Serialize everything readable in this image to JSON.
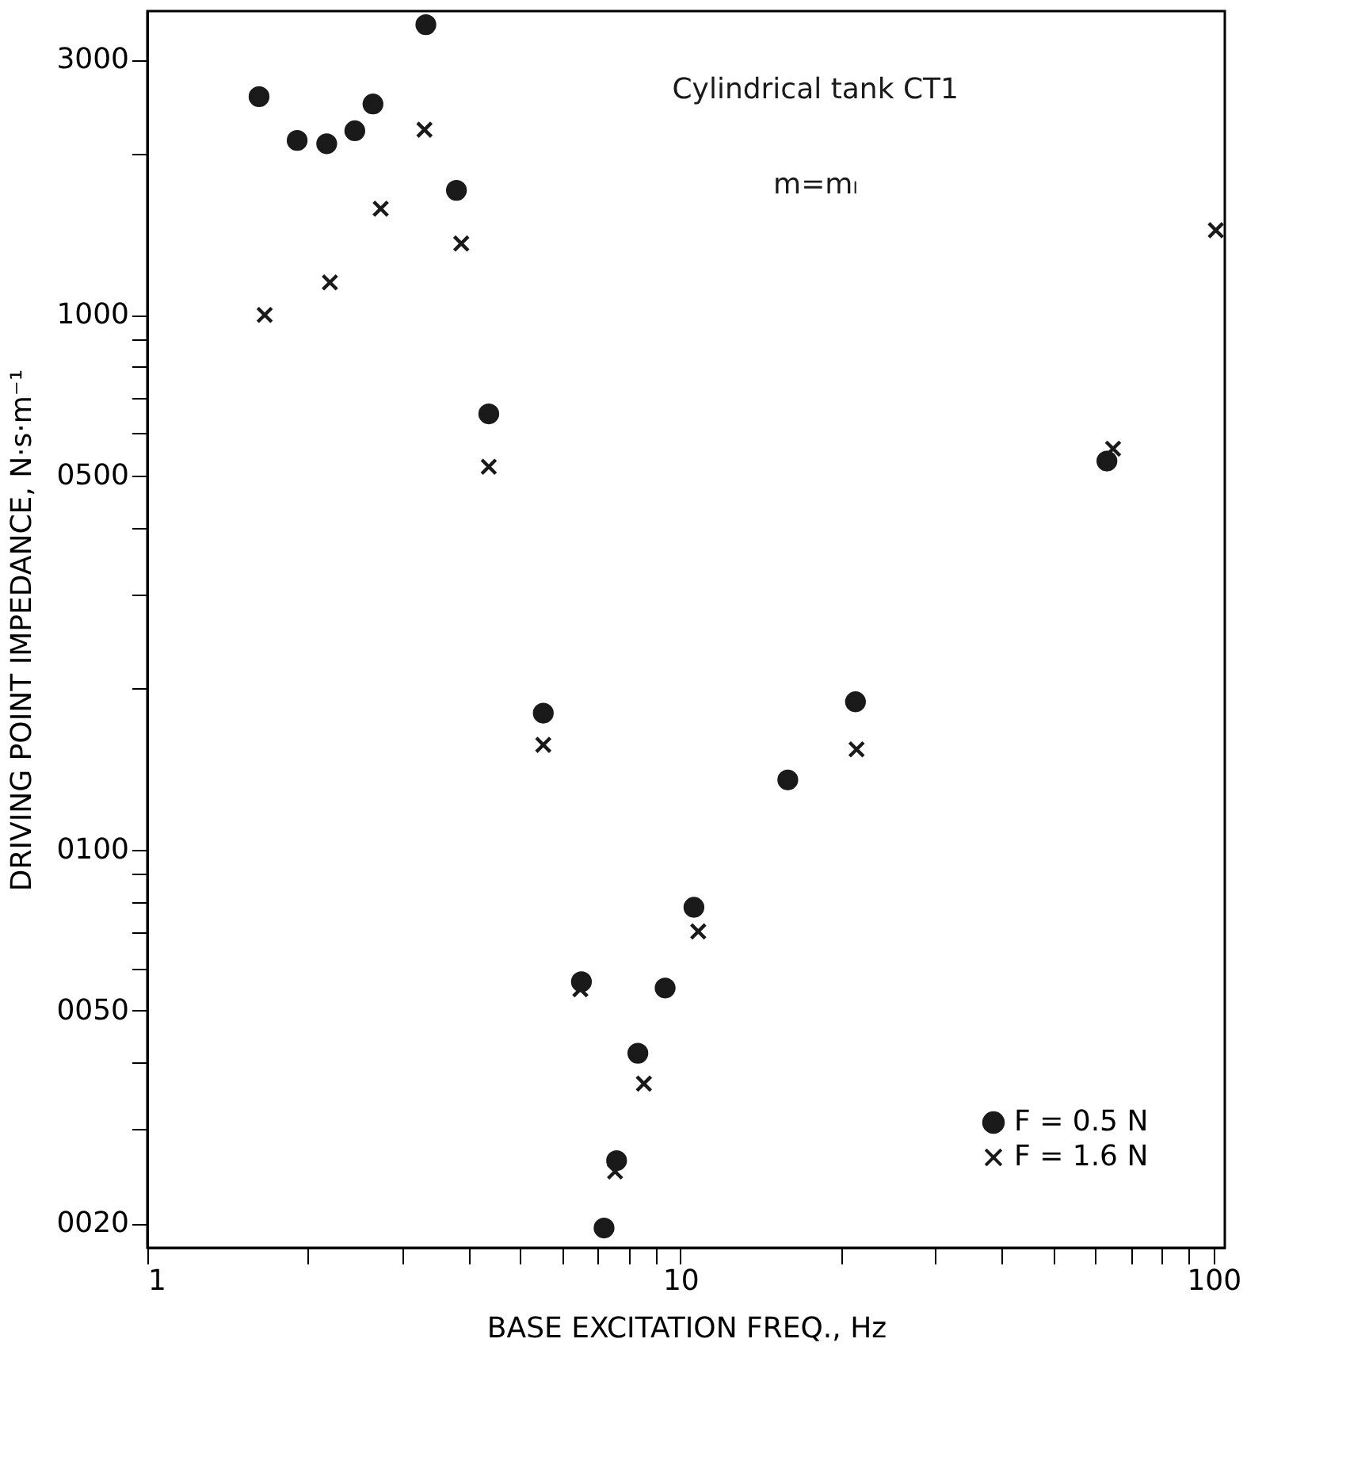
{
  "chart_data": {
    "type": "scatter",
    "xlabel": "BASE EXCITATION FREQ., Hz",
    "ylabel": "DRIVING POINT IMPEDANCE, N·s·m⁻¹",
    "annotations": [
      "Cylindrical tank CT1",
      "m=mₗ"
    ],
    "log": "xy",
    "grid": false,
    "legend": "bottom right",
    "xlim": [
      1,
      105
    ],
    "ylim": [
      18,
      3700
    ],
    "xticks": [
      1,
      {
        "value": 2,
        "label": null
      },
      {
        "value": 3,
        "label": null
      },
      {
        "value": 4,
        "label": null
      },
      {
        "value": 5,
        "label": null
      },
      {
        "value": 6,
        "label": null
      },
      {
        "value": 7,
        "label": null
      },
      {
        "value": 8,
        "label": null
      },
      {
        "value": 9,
        "label": null
      },
      10,
      {
        "value": 20,
        "label": null
      },
      {
        "value": 30,
        "label": null
      },
      {
        "value": 40,
        "label": null
      },
      {
        "value": 50,
        "label": null
      },
      {
        "value": 60,
        "label": null
      },
      {
        "value": 70,
        "label": null
      },
      {
        "value": 80,
        "label": null
      },
      {
        "value": 90,
        "label": null
      },
      100
    ],
    "yticks": [
      {
        "value": 20,
        "label": "0020"
      },
      {
        "value": 30,
        "label": null
      },
      {
        "value": 40,
        "label": null
      },
      {
        "value": 50,
        "label": "0050"
      },
      {
        "value": 60,
        "label": null
      },
      {
        "value": 70,
        "label": null
      },
      {
        "value": 80,
        "label": null
      },
      {
        "value": 90,
        "label": null
      },
      {
        "value": 100,
        "label": "0100"
      },
      {
        "value": 200,
        "label": null
      },
      {
        "value": 300,
        "label": null
      },
      {
        "value": 400,
        "label": null
      },
      {
        "value": 500,
        "label": "0500"
      },
      {
        "value": 600,
        "label": null
      },
      {
        "value": 700,
        "label": null
      },
      {
        "value": 800,
        "label": null
      },
      {
        "value": 900,
        "label": null
      },
      1000,
      {
        "value": 2000,
        "label": null
      },
      3000
    ],
    "series": [
      {
        "name": "F = 0.5 N",
        "color": "#1a1a1a",
        "marker": "circle",
        "x": [
          1.62,
          1.91,
          2.17,
          2.45,
          2.65,
          3.33,
          3.8,
          4.37,
          5.53,
          6.52,
          7.59,
          7.19,
          8.32,
          9.36,
          10.6,
          15.9,
          21.3,
          63.1
        ],
        "values": [
          2560,
          2120,
          2090,
          2210,
          2480,
          3490,
          1710,
          653,
          180,
          56.6,
          26.2,
          19.6,
          41.6,
          55.1,
          78,
          135,
          189,
          533
        ]
      },
      {
        "name": "F = 1.6 N",
        "color": "#1a1a1a",
        "marker": "cross",
        "x": [
          1.66,
          2.2,
          2.74,
          3.31,
          3.88,
          4.37,
          5.53,
          6.49,
          7.54,
          8.54,
          10.8,
          21.4,
          64.8,
          101
        ],
        "values": [
          1000,
          1150,
          1580,
          2220,
          1360,
          520,
          157,
          54.8,
          25,
          36.5,
          70.3,
          154,
          562,
          1440
        ]
      }
    ]
  }
}
